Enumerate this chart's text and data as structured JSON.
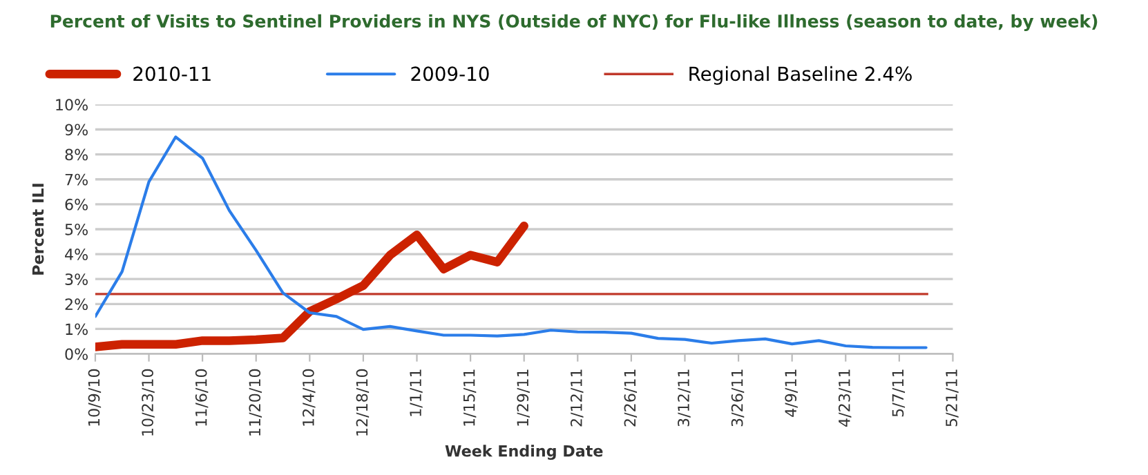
{
  "chart_data": {
    "type": "line",
    "title": "Percent of Visits to Sentinel Providers in NYS (Outside of NYC) for Flu-like Illness (season to date, by week)",
    "xlabel": "Week Ending Date",
    "ylabel": "Percent ILI",
    "series": [
      {
        "name": "2010-11",
        "color": "#cc2200",
        "x": [
          "2010-10-09",
          "2010-10-16",
          "2010-10-23",
          "2010-10-30",
          "2010-11-06",
          "2010-11-13",
          "2010-11-20",
          "2010-11-27",
          "2010-12-04",
          "2010-12-11",
          "2010-12-18",
          "2010-12-25",
          "2011-01-01",
          "2011-01-08",
          "2011-01-15",
          "2011-01-22",
          "2011-01-29"
        ],
        "values": [
          0.28,
          0.38,
          0.38,
          0.38,
          0.53,
          0.53,
          0.57,
          0.64,
          1.7,
          2.2,
          2.74,
          3.96,
          4.77,
          3.4,
          3.96,
          3.68,
          5.13
        ]
      },
      {
        "name": "2009-10",
        "color": "#2b7de9",
        "x": [
          "2010-10-09",
          "2010-10-16",
          "2010-10-23",
          "2010-10-30",
          "2010-11-06",
          "2010-11-13",
          "2010-11-20",
          "2010-11-27",
          "2010-12-04",
          "2010-12-11",
          "2010-12-18",
          "2010-12-25",
          "2011-01-01",
          "2011-01-08",
          "2011-01-15",
          "2011-01-22",
          "2011-01-29",
          "2011-02-05",
          "2011-02-12",
          "2011-02-19",
          "2011-02-26",
          "2011-03-05",
          "2011-03-12",
          "2011-03-19",
          "2011-03-26",
          "2011-04-02",
          "2011-04-09",
          "2011-04-16",
          "2011-04-23",
          "2011-04-30",
          "2011-05-07",
          "2011-05-14"
        ],
        "values": [
          1.5,
          3.3,
          6.9,
          8.7,
          7.85,
          5.75,
          4.15,
          2.45,
          1.65,
          1.5,
          0.98,
          1.1,
          0.92,
          0.75,
          0.75,
          0.72,
          0.78,
          0.95,
          0.88,
          0.87,
          0.83,
          0.62,
          0.58,
          0.43,
          0.53,
          0.6,
          0.4,
          0.53,
          0.32,
          0.26,
          0.25,
          0.25
        ]
      }
    ],
    "ref_lines": [
      {
        "axis": "y",
        "value": 2.4,
        "label": "Regional Baseline 2.4%",
        "color": "#c0392b"
      }
    ],
    "xlim": [
      "2010-10-09",
      "2011-05-21"
    ],
    "xticks": [
      {
        "value": "2010-10-09",
        "label": "10/9/10"
      },
      {
        "value": "2010-10-23",
        "label": "10/23/10"
      },
      {
        "value": "2010-11-06",
        "label": "11/6/10"
      },
      {
        "value": "2010-11-20",
        "label": "11/20/10"
      },
      {
        "value": "2010-12-04",
        "label": "12/4/10"
      },
      {
        "value": "2010-12-18",
        "label": "12/18/10"
      },
      {
        "value": "2011-01-01",
        "label": "1/1/11"
      },
      {
        "value": "2011-01-15",
        "label": "1/15/11"
      },
      {
        "value": "2011-01-29",
        "label": "1/29/11"
      },
      {
        "value": "2011-02-12",
        "label": "2/12/11"
      },
      {
        "value": "2011-02-26",
        "label": "2/26/11"
      },
      {
        "value": "2011-03-12",
        "label": "3/12/11"
      },
      {
        "value": "2011-03-26",
        "label": "3/26/11"
      },
      {
        "value": "2011-04-09",
        "label": "4/9/11"
      },
      {
        "value": "2011-04-23",
        "label": "4/23/11"
      },
      {
        "value": "2011-05-07",
        "label": "5/7/11"
      },
      {
        "value": "2011-05-21",
        "label": "5/21/11"
      }
    ],
    "ylim": [
      0,
      10
    ],
    "yticks": [
      {
        "value": 0,
        "label": "0%"
      },
      {
        "value": 1,
        "label": "1%"
      },
      {
        "value": 2,
        "label": "2%"
      },
      {
        "value": 3,
        "label": "3%"
      },
      {
        "value": 4,
        "label": "4%"
      },
      {
        "value": 5,
        "label": "5%"
      },
      {
        "value": 6,
        "label": "6%"
      },
      {
        "value": 7,
        "label": "7%"
      },
      {
        "value": 8,
        "label": "8%"
      },
      {
        "value": 9,
        "label": "9%"
      },
      {
        "value": 10,
        "label": "10%"
      }
    ],
    "grid": "y",
    "legend": "top",
    "marker": "none",
    "line_style": "solid"
  }
}
